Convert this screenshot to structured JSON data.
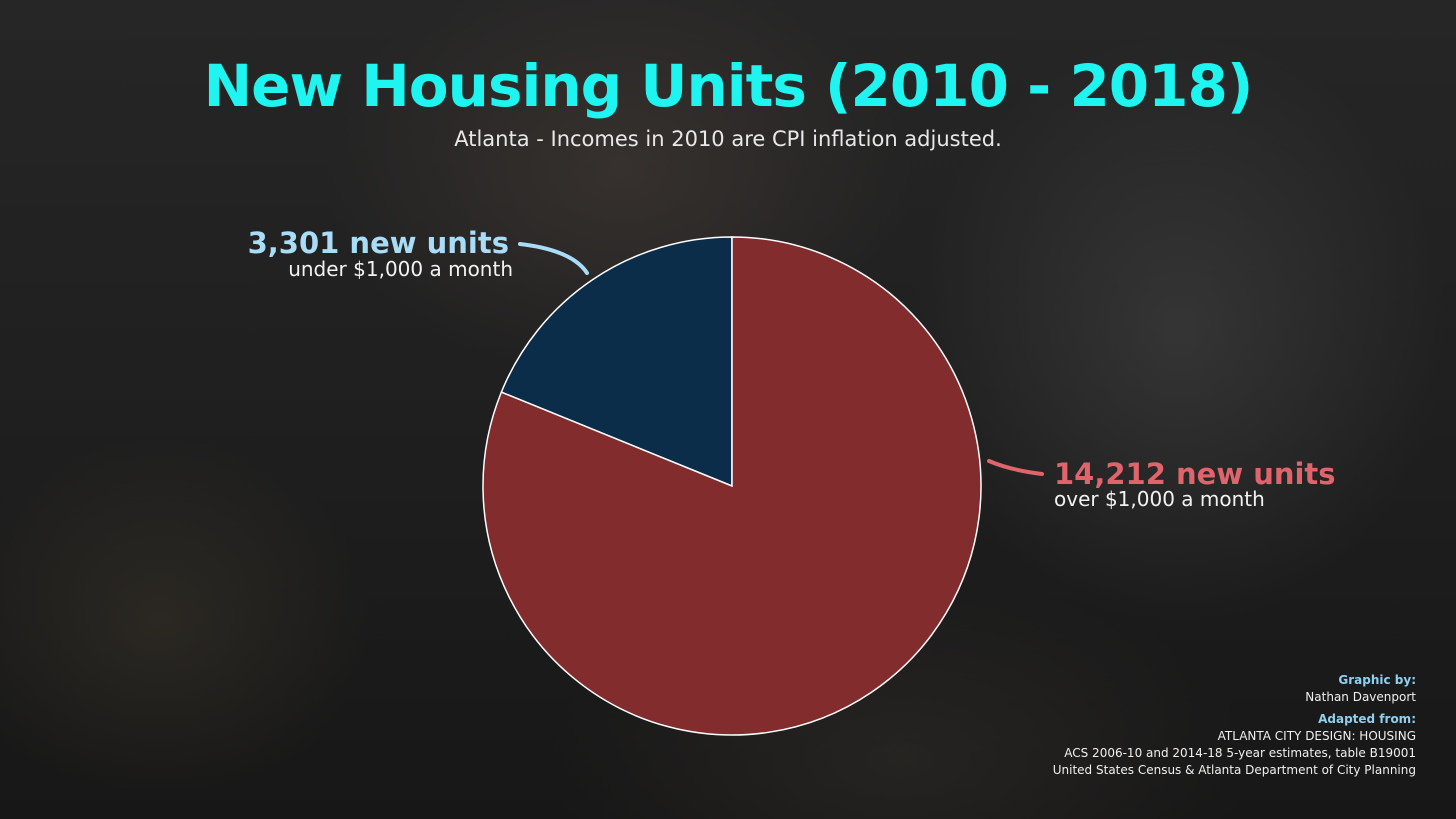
{
  "title": "New Housing Units (2010 - 2018)",
  "subtitle": "Atlanta - Incomes in 2010 are CPI inflation adjusted.",
  "chart_data": {
    "type": "pie",
    "title": "New Housing Units (2010 - 2018)",
    "subtitle": "Atlanta - Incomes in 2010 are CPI inflation adjusted.",
    "slices": [
      {
        "key": "under",
        "value": 3301,
        "label": "3,301 new units",
        "sublabel": "under $1,000 a month",
        "color": "#0c2d4a",
        "label_color": "#a9dcf7"
      },
      {
        "key": "over",
        "value": 14212,
        "label": "14,212 new units",
        "sublabel": "over $1,000 a month",
        "color": "#822c2e",
        "label_color": "#e0646c"
      }
    ],
    "start_angle_deg": 0,
    "direction": "counterclockwise"
  },
  "credits": {
    "graphic_by_label": "Graphic by:",
    "graphic_by": "Nathan Davenport",
    "adapted_from_label": "Adapted from:",
    "sources": [
      "ATLANTA CITY DESIGN: HOUSING",
      "ACS 2006-10 and 2014-18 5-year estimates, table B19001",
      "United States Census & Atlanta Department of City Planning"
    ]
  },
  "colors": {
    "title": "#1ff5f0",
    "subtitle": "#e8e8e8",
    "slice_border": "#ffffff",
    "credit_heading": "#8fd0f0"
  }
}
